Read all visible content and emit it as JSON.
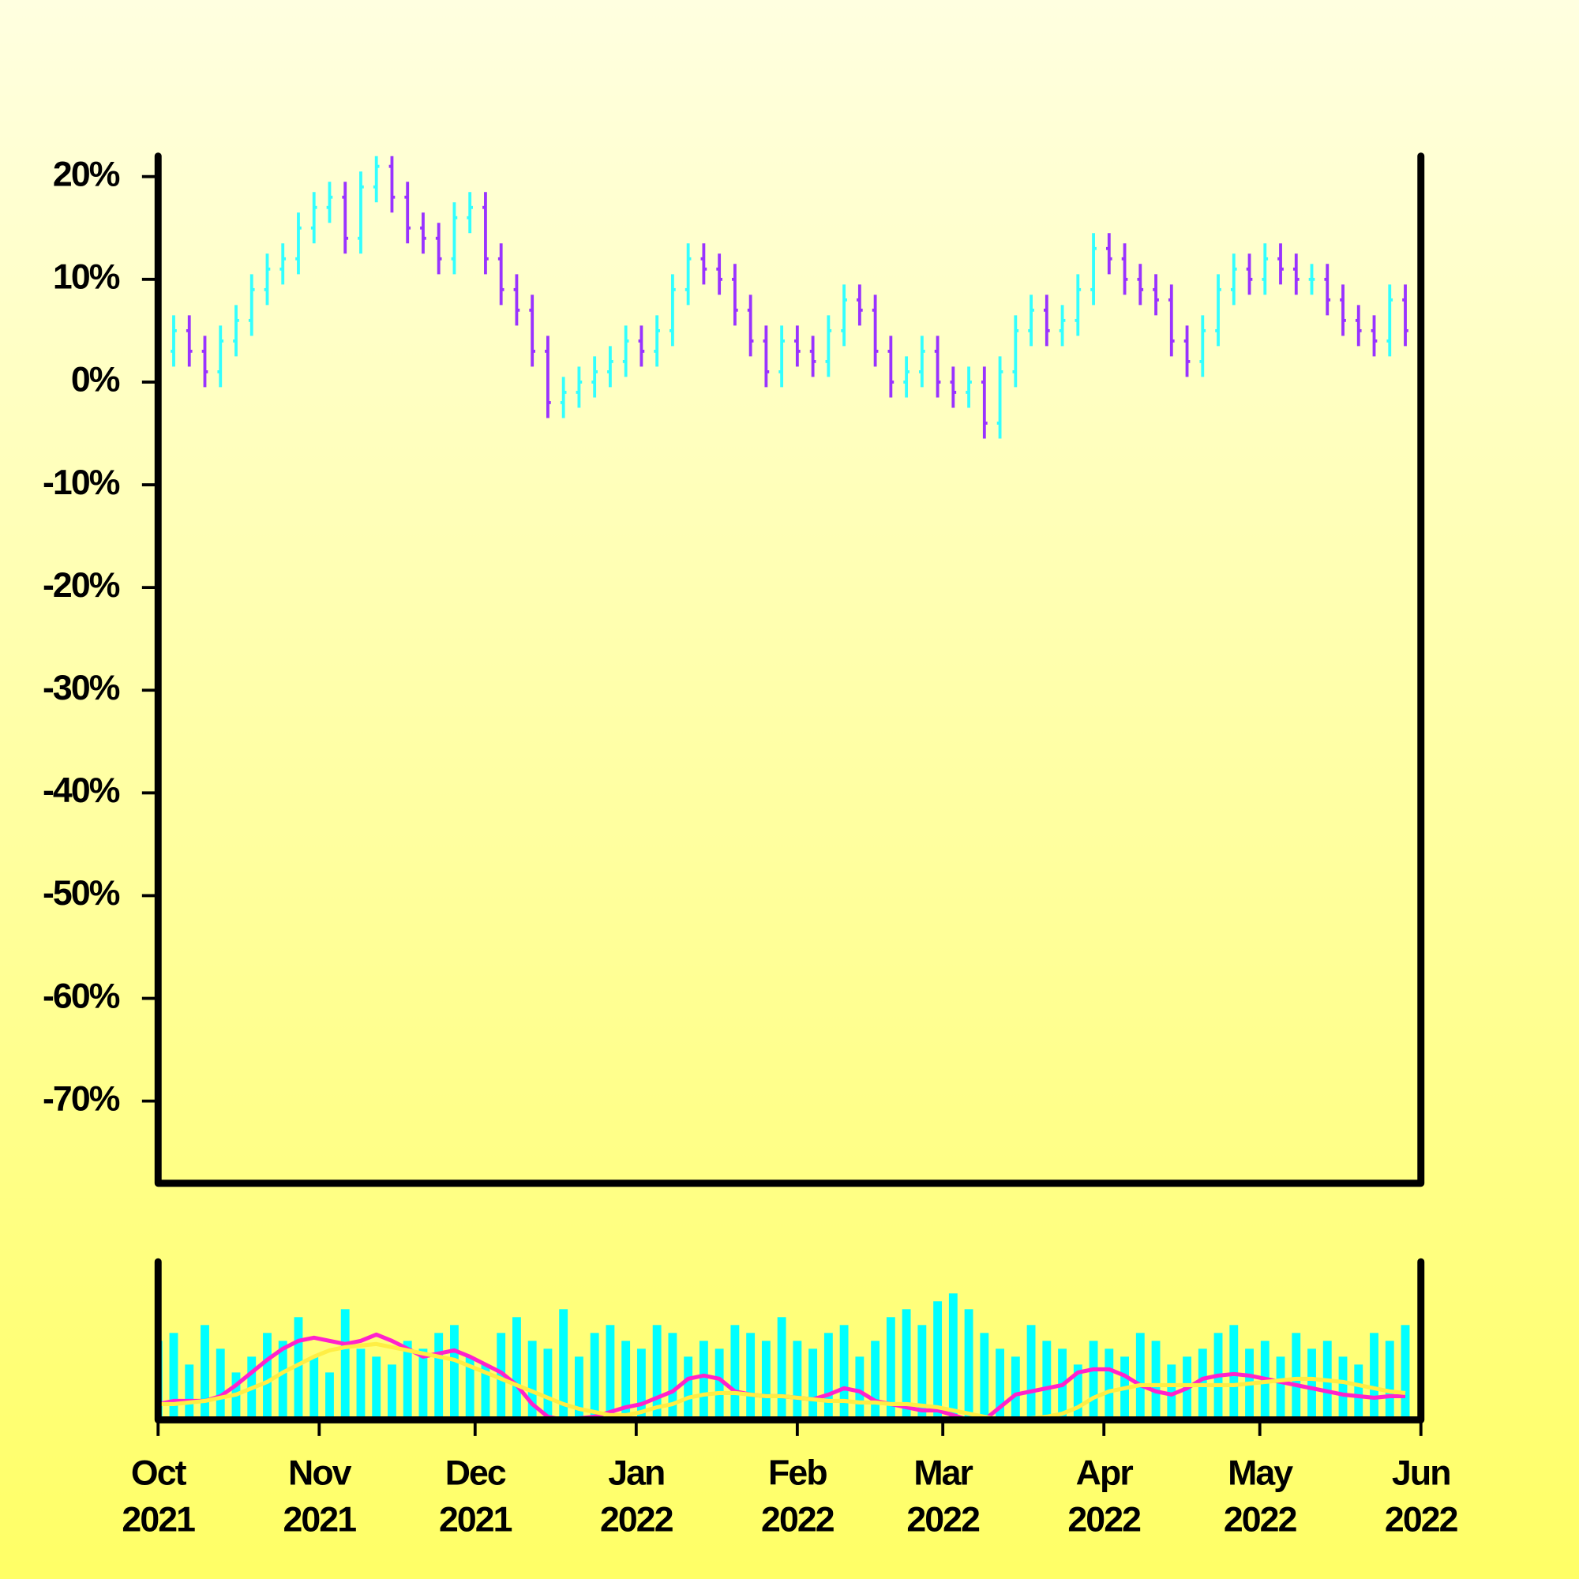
{
  "chart_data": {
    "type": "ohlc",
    "up_color": "#33ffff",
    "down_color": "#9933ff",
    "x": [
      0,
      3,
      6,
      9,
      12,
      15,
      18,
      21,
      24,
      27,
      30,
      33,
      36,
      39,
      42,
      45,
      48,
      51,
      54,
      57,
      60,
      63,
      66,
      69,
      72,
      75,
      78,
      81,
      84,
      87,
      90,
      93,
      96,
      99,
      102,
      105,
      108,
      111,
      114,
      117,
      120,
      123,
      126,
      129,
      132,
      135,
      138,
      141,
      144,
      147,
      150,
      153,
      156,
      159,
      162,
      165,
      168,
      171,
      174,
      177,
      180,
      183,
      186,
      189,
      192,
      195,
      198,
      201,
      204,
      207,
      210,
      213,
      216,
      219,
      222,
      225,
      228,
      231,
      234,
      237,
      240
    ],
    "open": [
      1,
      3,
      5,
      3,
      1,
      4,
      6,
      9,
      11,
      12,
      15,
      17,
      18,
      14,
      19,
      21,
      18,
      15,
      14,
      12,
      16,
      17,
      12,
      9,
      7,
      3,
      -2,
      -1,
      0,
      1,
      2,
      4,
      3,
      5,
      9,
      12,
      11,
      10,
      7,
      4,
      1,
      4,
      3,
      2,
      5,
      8,
      7,
      3,
      0,
      1,
      3,
      0,
      -1,
      0,
      -4,
      1,
      5,
      7,
      5,
      6,
      9,
      13,
      12,
      10,
      9,
      8,
      4,
      2,
      5,
      9,
      11,
      10,
      12,
      11,
      10,
      10,
      8,
      6,
      5,
      4,
      8
    ],
    "high": [
      4.5,
      6.5,
      6.5,
      4.5,
      5.5,
      7.5,
      10.5,
      12.5,
      13.5,
      16.5,
      18.5,
      19.5,
      19.5,
      20.5,
      22.5,
      22.5,
      19.5,
      16.5,
      15.5,
      17.5,
      18.5,
      18.5,
      13.5,
      10.5,
      8.5,
      4.5,
      0.5,
      1.5,
      2.5,
      3.5,
      5.5,
      5.5,
      6.5,
      10.5,
      13.5,
      13.5,
      12.5,
      11.5,
      8.5,
      5.5,
      5.5,
      5.5,
      4.5,
      6.5,
      9.5,
      9.5,
      8.5,
      4.5,
      2.5,
      4.5,
      4.5,
      1.5,
      1.5,
      1.5,
      2.5,
      6.5,
      8.5,
      8.5,
      7.5,
      10.5,
      14.5,
      14.5,
      13.5,
      11.5,
      10.5,
      9.5,
      5.5,
      6.5,
      10.5,
      12.5,
      12.5,
      13.5,
      13.5,
      12.5,
      11.5,
      11.5,
      9.5,
      7.5,
      6.5,
      9.5,
      9.5
    ],
    "low": [
      -0.5,
      1.5,
      1.5,
      -0.5,
      -0.5,
      2.5,
      4.5,
      7.5,
      9.5,
      10.5,
      13.5,
      15.5,
      12.5,
      12.5,
      17.5,
      16.5,
      13.5,
      12.5,
      10.5,
      10.5,
      14.5,
      10.5,
      7.5,
      5.5,
      1.5,
      -3.5,
      -3.5,
      -2.5,
      -1.5,
      -0.5,
      0.5,
      1.5,
      1.5,
      3.5,
      7.5,
      9.5,
      8.5,
      5.5,
      2.5,
      -0.5,
      -0.5,
      1.5,
      0.5,
      0.5,
      3.5,
      5.5,
      1.5,
      -1.5,
      -1.5,
      -0.5,
      -1.5,
      -2.5,
      -2.5,
      -5.5,
      -5.5,
      -0.5,
      3.5,
      3.5,
      3.5,
      4.5,
      7.5,
      10.5,
      8.5,
      7.5,
      6.5,
      2.5,
      0.5,
      0.5,
      3.5,
      7.5,
      8.5,
      8.5,
      9.5,
      8.5,
      8.5,
      6.5,
      4.5,
      3.5,
      2.5,
      2.5,
      3.5
    ],
    "close": [
      3,
      5,
      3,
      1,
      4,
      6,
      9,
      11,
      12,
      15,
      17,
      18,
      14,
      19,
      21,
      18,
      15,
      14,
      12,
      16,
      17,
      12,
      9,
      7,
      3,
      -2,
      -1,
      0,
      1,
      2,
      4,
      3,
      5,
      9,
      12,
      11,
      10,
      7,
      4,
      1,
      4,
      3,
      2,
      5,
      8,
      7,
      3,
      0,
      1,
      3,
      0,
      -1,
      0,
      -4,
      1,
      5,
      7,
      5,
      6,
      9,
      13,
      12,
      10,
      9,
      8,
      4,
      2,
      5,
      9,
      11,
      10,
      12,
      11,
      10,
      10,
      8,
      6,
      5,
      4,
      8,
      5
    ],
    "xlim": [
      0,
      243
    ],
    "xticks": [
      {
        "value": 0,
        "label": [
          "Oct",
          "2021"
        ]
      },
      {
        "value": 31,
        "label": [
          "Nov",
          "2021"
        ]
      },
      {
        "value": 61,
        "label": [
          "Dec",
          "2021"
        ]
      },
      {
        "value": 92,
        "label": [
          "Jan",
          "2022"
        ]
      },
      {
        "value": 123,
        "label": [
          "Feb",
          "2022"
        ]
      },
      {
        "value": 151,
        "label": [
          "Mar",
          "2022"
        ]
      },
      {
        "value": 182,
        "label": [
          "Apr",
          "2022"
        ]
      },
      {
        "value": 212,
        "label": [
          "May",
          "2022"
        ]
      },
      {
        "value": 243,
        "label": [
          "Jun",
          "2022"
        ]
      }
    ],
    "ylim": [
      -78,
      22
    ],
    "yticks": [
      {
        "value": 20,
        "label": "20%"
      },
      {
        "value": 10,
        "label": "10%"
      },
      {
        "value": 0,
        "label": "0%"
      },
      {
        "value": -10,
        "label": "-10%"
      },
      {
        "value": -20,
        "label": "-20%"
      },
      {
        "value": -30,
        "label": "-30%"
      },
      {
        "value": -40,
        "label": "-40%"
      },
      {
        "value": -50,
        "label": "-50%"
      },
      {
        "value": -60,
        "label": "-60%"
      },
      {
        "value": -70,
        "label": "-70%"
      }
    ],
    "volume": {
      "color": "#00ffff",
      "ylim": [
        0,
        100
      ],
      "values": [
        50,
        55,
        35,
        60,
        45,
        30,
        40,
        55,
        50,
        65,
        40,
        30,
        70,
        45,
        40,
        35,
        50,
        45,
        55,
        60,
        40,
        35,
        55,
        65,
        50,
        45,
        70,
        40,
        55,
        60,
        50,
        45,
        60,
        55,
        40,
        50,
        45,
        60,
        55,
        50,
        65,
        50,
        45,
        55,
        60,
        40,
        50,
        65,
        70,
        60,
        75,
        80,
        70,
        55,
        45,
        40,
        60,
        50,
        45,
        35,
        50,
        45,
        40,
        55,
        50,
        35,
        40,
        45,
        55,
        60,
        45,
        50,
        40,
        55,
        45,
        50,
        40,
        35,
        55,
        50,
        60
      ],
      "series": [
        {
          "color": "#ff22cc",
          "values": [
            10,
            12,
            12,
            12,
            15,
            22,
            30,
            38,
            45,
            50,
            52,
            50,
            48,
            50,
            54,
            50,
            45,
            40,
            42,
            44,
            40,
            35,
            30,
            22,
            10,
            2,
            0,
            1,
            2,
            5,
            8,
            10,
            14,
            18,
            26,
            28,
            26,
            18,
            16,
            15,
            15,
            14,
            13,
            16,
            20,
            18,
            12,
            10,
            8,
            6,
            6,
            3,
            0,
            0,
            8,
            16,
            18,
            20,
            22,
            30,
            32,
            32,
            28,
            22,
            18,
            16,
            20,
            26,
            28,
            29,
            28,
            26,
            24,
            22,
            20,
            18,
            16,
            15,
            14,
            15,
            15
          ]
        },
        {
          "color": "#ffee44",
          "values": [
            10,
            10,
            11,
            12,
            14,
            16,
            20,
            24,
            30,
            35,
            40,
            44,
            46,
            47,
            48,
            46,
            44,
            42,
            40,
            38,
            34,
            30,
            26,
            22,
            18,
            14,
            10,
            7,
            5,
            3,
            3,
            5,
            8,
            10,
            14,
            16,
            17,
            17,
            16,
            15,
            15,
            14,
            13,
            12,
            12,
            11,
            11,
            10,
            10,
            9,
            8,
            6,
            4,
            2,
            0,
            0,
            1,
            2,
            4,
            8,
            14,
            18,
            20,
            22,
            22,
            22,
            22,
            22,
            22,
            22,
            23,
            24,
            25,
            26,
            26,
            25,
            24,
            22,
            20,
            18,
            17
          ]
        }
      ]
    }
  }
}
